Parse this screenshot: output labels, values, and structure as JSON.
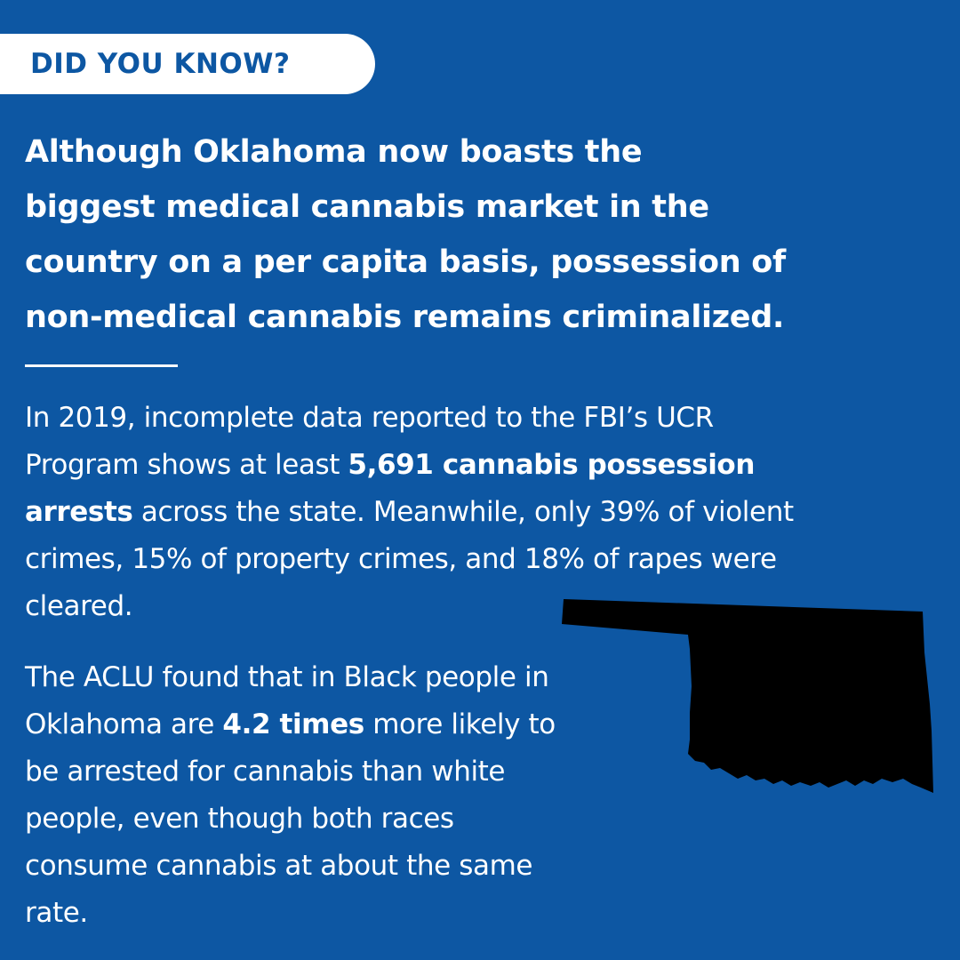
{
  "badge": {
    "label": "DID YOU KNOW?"
  },
  "headline": {
    "lines": [
      "Although Oklahoma now boasts the",
      "biggest medical cannabis market in the",
      "country on a per capita basis, possession of",
      "non-medical cannabis remains criminalized."
    ]
  },
  "paragraph1": {
    "l1": "In 2019, incomplete data reported to the FBI’s UCR",
    "l2_pre": "Program shows at least ",
    "l2_bold": "5,691 cannabis possession",
    "l3_bold": "arrests",
    "l3_post": " across the state. Meanwhile, only 39% of violent",
    "l4": "crimes, 15% of property crimes, and 18% of rapes were",
    "l5": "cleared."
  },
  "paragraph2": {
    "l1": "The ACLU found that in Black people in",
    "l2_pre": "Oklahoma are ",
    "l2_bold": "4.2 times",
    "l2_post": " more likely to",
    "l3": "be arrested for cannabis than white",
    "l4": "people, even though both races",
    "l5": "consume cannabis at about the same",
    "l6": "rate."
  },
  "colors": {
    "background": "#0d57a3",
    "text": "#ffffff",
    "badge_background": "#ffffff",
    "badge_text": "#0d57a3",
    "map_fill": "#000000"
  },
  "icons": {
    "map": "oklahoma-state-silhouette"
  }
}
